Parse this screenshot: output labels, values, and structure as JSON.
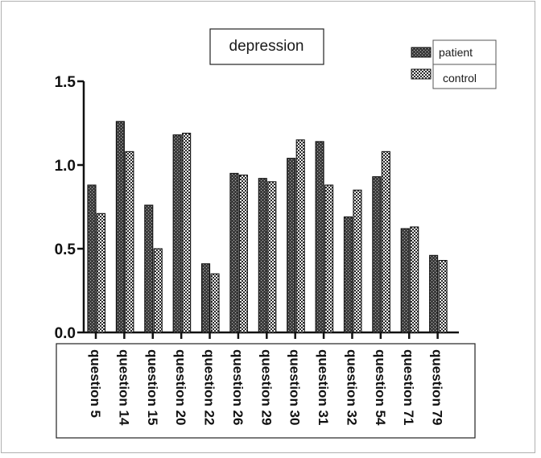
{
  "chart_data": {
    "type": "bar",
    "title": "depression",
    "xlabel": "",
    "ylabel": "",
    "ylim": [
      0,
      1.5
    ],
    "yticks": [
      "0.0",
      "0.5",
      "1.0",
      "1.5"
    ],
    "grid": false,
    "legend_position": "top-right",
    "categories": [
      "question 5",
      "question 14",
      "question 15",
      "question 20",
      "question 22",
      "question 26",
      "question 29",
      "question 30",
      "question 31",
      "question 32",
      "question 54",
      "question 71",
      "question 79"
    ],
    "series": [
      {
        "name": "patient",
        "pattern": "dark-stippled",
        "values": [
          0.88,
          1.26,
          0.76,
          1.18,
          0.41,
          0.95,
          0.92,
          1.04,
          1.14,
          0.69,
          0.93,
          0.62,
          0.46
        ]
      },
      {
        "name": "control",
        "pattern": "checkered",
        "values": [
          0.71,
          1.08,
          0.5,
          1.19,
          0.35,
          0.94,
          0.9,
          1.15,
          0.88,
          0.85,
          1.08,
          0.63,
          0.43
        ]
      }
    ]
  }
}
